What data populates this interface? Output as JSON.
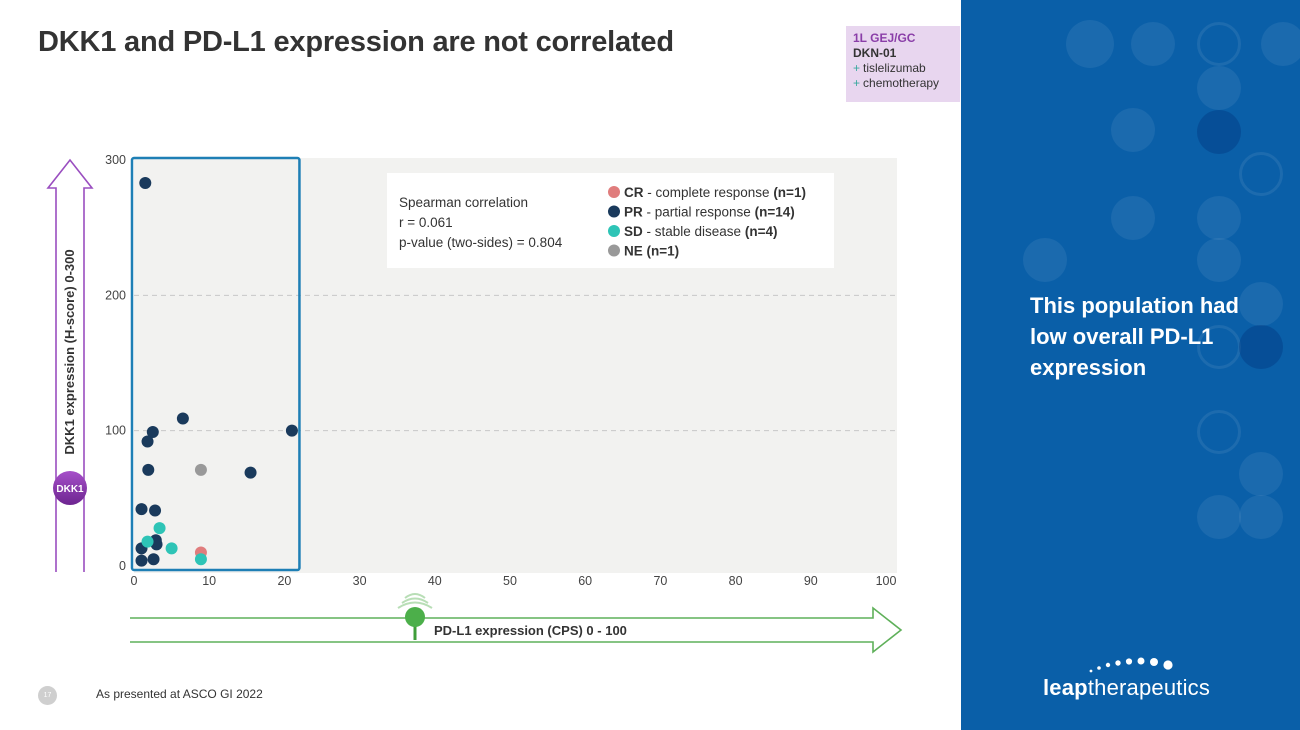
{
  "slide": {
    "title": "DKK1 and PD-L1 expression are not correlated",
    "page_number": "17",
    "footer": "As presented at ASCO GI 2022"
  },
  "tagbox": {
    "indication": "1L GEJ/GC",
    "drug": "DKN-01",
    "plus_symbol": "+",
    "combo_1": "tislelizumab",
    "combo_2": "chemotherapy"
  },
  "sidebar": {
    "message": "This population had low overall PD-L1 expression",
    "logo_bold": "leap",
    "logo_rest": "therapeutics"
  },
  "chart_data": {
    "type": "scatter",
    "title": "",
    "xlabel": "PD-L1 expression (CPS) 0 - 100",
    "ylabel": "DKK1 expression (H-score) 0-300",
    "xlim": [
      0,
      100
    ],
    "ylim": [
      0,
      300
    ],
    "x_ticks": [
      0,
      10,
      20,
      30,
      40,
      50,
      60,
      70,
      80,
      90,
      100
    ],
    "y_ticks": [
      0,
      100,
      200,
      300
    ],
    "gridlines_y": [
      100,
      200
    ],
    "highlight_box_x": [
      0,
      22
    ],
    "x_badge": "",
    "y_badge": "DKK1",
    "stats": {
      "heading": "Spearman correlation",
      "r": "r = 0.061",
      "p": "p-value (two-sides) = 0.804"
    },
    "legend": [
      {
        "code": "CR",
        "desc": " - complete response ",
        "n": "(n=1)",
        "color": "#e07d7d"
      },
      {
        "code": "PR",
        "desc": " - partial response ",
        "n": "(n=14)",
        "color": "#1a3a5c"
      },
      {
        "code": "SD",
        "desc": " - stable disease ",
        "n": "(n=4)",
        "color": "#2ec4b6"
      },
      {
        "code": "NE",
        "desc": " ",
        "n": "(n=1)",
        "color": "#999999"
      }
    ],
    "series": [
      {
        "name": "CR",
        "color": "#e07d7d",
        "points": [
          [
            8.9,
            10
          ]
        ]
      },
      {
        "name": "PR",
        "color": "#1a3a5c",
        "points": [
          [
            1.5,
            283
          ],
          [
            6.5,
            109
          ],
          [
            2.5,
            99
          ],
          [
            21,
            100
          ],
          [
            1.8,
            92
          ],
          [
            1.9,
            71
          ],
          [
            15.5,
            69
          ],
          [
            1,
            42
          ],
          [
            2.8,
            41
          ],
          [
            2.9,
            19
          ],
          [
            1,
            13
          ],
          [
            1,
            4
          ],
          [
            2.6,
            5
          ],
          [
            3,
            16
          ]
        ]
      },
      {
        "name": "SD",
        "color": "#2ec4b6",
        "points": [
          [
            3.4,
            28
          ],
          [
            1.8,
            18
          ],
          [
            5,
            13
          ],
          [
            8.9,
            5
          ]
        ]
      },
      {
        "name": "NE",
        "color": "#999999",
        "points": [
          [
            8.9,
            71
          ]
        ]
      }
    ]
  }
}
